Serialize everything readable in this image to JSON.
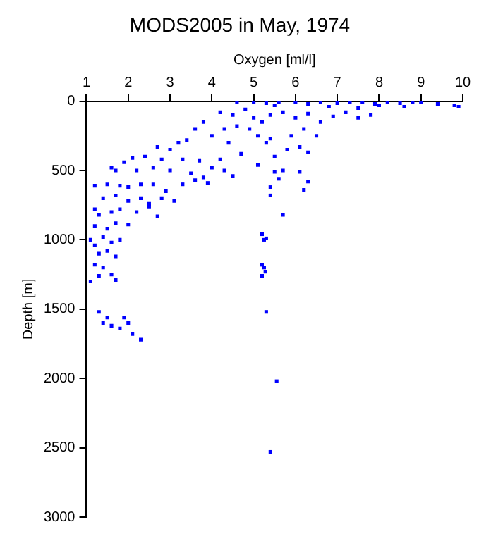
{
  "chart_data": {
    "type": "scatter",
    "title": "MODS2005 in May, 1974",
    "xlabel": "Oxygen [ml/l]",
    "ylabel": "Depth [m]",
    "xlim": [
      1,
      10
    ],
    "xticks": [
      1,
      2,
      3,
      4,
      5,
      6,
      7,
      8,
      9,
      10
    ],
    "ylim": [
      3000,
      0
    ],
    "yticks": [
      0,
      500,
      1000,
      1500,
      2000,
      2500,
      3000
    ],
    "grid": false,
    "legend": false,
    "marker": "square",
    "series": [
      {
        "color": "#0000ff",
        "x": [
          4.6,
          5.0,
          5.3,
          5.6,
          6.0,
          6.3,
          6.6,
          7.0,
          7.3,
          7.6,
          7.9,
          8.2,
          8.5,
          8.8,
          9.0,
          9.4,
          9.8,
          9.9,
          5.5,
          6.8,
          7.5,
          8.0,
          8.6,
          4.2,
          4.5,
          4.8,
          5.0,
          5.2,
          5.4,
          4.9,
          5.1,
          4.6,
          4.3,
          5.7,
          6.0,
          6.3,
          6.6,
          6.9,
          7.2,
          7.5,
          7.8,
          6.2,
          5.9,
          5.4,
          5.3,
          4.0,
          3.6,
          3.4,
          3.0,
          2.7,
          3.2,
          3.8,
          4.4,
          4.7,
          4.2,
          4.0,
          3.7,
          3.3,
          2.8,
          2.4,
          2.1,
          1.9,
          1.7,
          1.6,
          2.2,
          2.6,
          3.0,
          3.5,
          3.8,
          4.3,
          4.5,
          5.1,
          5.5,
          6.1,
          6.3,
          6.5,
          5.8,
          5.5,
          5.6,
          5.7,
          6.1,
          6.3,
          6.2,
          5.4,
          5.4,
          5.7,
          1.2,
          1.5,
          1.8,
          2.0,
          2.3,
          2.6,
          2.9,
          3.3,
          3.6,
          3.9,
          1.4,
          1.7,
          2.0,
          2.3,
          2.5,
          2.8,
          3.1,
          1.2,
          1.3,
          1.6,
          1.8,
          2.2,
          2.5,
          2.7,
          1.2,
          1.5,
          1.7,
          2.0,
          1.1,
          1.2,
          1.4,
          1.6,
          1.8,
          1.3,
          1.5,
          1.7,
          1.2,
          1.4,
          1.6,
          1.1,
          1.3,
          1.7,
          1.3,
          1.5,
          1.9,
          1.4,
          1.6,
          1.8,
          2.0,
          2.1,
          2.3,
          5.2,
          5.25,
          5.3,
          5.2,
          5.25,
          5.28,
          5.2,
          5.3,
          5.55,
          5.4
        ],
        "values": [
          10,
          5,
          15,
          5,
          10,
          20,
          5,
          15,
          10,
          5,
          20,
          10,
          15,
          5,
          10,
          20,
          30,
          40,
          30,
          40,
          50,
          30,
          40,
          80,
          100,
          60,
          120,
          150,
          100,
          200,
          250,
          180,
          200,
          80,
          120,
          90,
          150,
          110,
          80,
          120,
          100,
          200,
          250,
          270,
          300,
          250,
          200,
          280,
          350,
          330,
          300,
          150,
          300,
          380,
          420,
          480,
          430,
          420,
          420,
          400,
          410,
          440,
          500,
          480,
          500,
          480,
          500,
          520,
          550,
          500,
          540,
          460,
          400,
          330,
          370,
          250,
          350,
          510,
          560,
          500,
          510,
          580,
          640,
          620,
          680,
          820,
          610,
          600,
          610,
          620,
          600,
          600,
          650,
          600,
          570,
          590,
          700,
          680,
          720,
          700,
          740,
          700,
          720,
          780,
          820,
          800,
          780,
          800,
          760,
          830,
          900,
          920,
          880,
          890,
          1000,
          1040,
          980,
          1020,
          1000,
          1100,
          1080,
          1120,
          1180,
          1200,
          1250,
          1300,
          1260,
          1290,
          1520,
          1560,
          1560,
          1600,
          1620,
          1640,
          1600,
          1680,
          1720,
          960,
          1000,
          990,
          1180,
          1200,
          1230,
          1260,
          1520,
          2020,
          2530
        ]
      }
    ]
  }
}
